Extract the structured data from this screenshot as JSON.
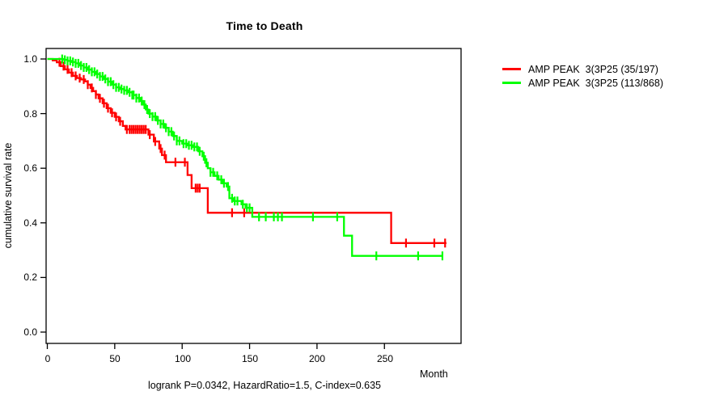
{
  "chart_data": {
    "type": "line",
    "subtype": "kaplan-meier-step",
    "title": "Time to Death",
    "xlabel": "Month",
    "ylabel": "cumulative survival rate",
    "footnote": "logrank P=0.0342, HazardRatio=1.5, C-index=0.635",
    "xlim": [
      0,
      306
    ],
    "ylim": [
      0.0,
      1.04
    ],
    "xticks": [
      0,
      50,
      100,
      150,
      200,
      250
    ],
    "yticks": [
      0.0,
      0.2,
      0.4,
      0.6,
      0.8,
      1.0
    ],
    "xtick_labels": [
      "0",
      "50",
      "100",
      "150",
      "200",
      "250"
    ],
    "ytick_labels": [
      "0.0",
      "0.2",
      "0.4",
      "0.6",
      "0.8",
      "1.0"
    ],
    "grid": false,
    "legend_position": "right-outside",
    "background_color": "#ffffff",
    "axis_color": "#000000",
    "series": [
      {
        "name": "AMP PEAK  3(3P25 (35/197)",
        "color": "#ff0000",
        "end_month": 296,
        "steps": [
          [
            0,
            1.0
          ],
          [
            4,
            0.995
          ],
          [
            7,
            0.988
          ],
          [
            10,
            0.974
          ],
          [
            13,
            0.962
          ],
          [
            16,
            0.95
          ],
          [
            19,
            0.938
          ],
          [
            22,
            0.93
          ],
          [
            25,
            0.925
          ],
          [
            28,
            0.918
          ],
          [
            30,
            0.906
          ],
          [
            32,
            0.894
          ],
          [
            34,
            0.882
          ],
          [
            36,
            0.87
          ],
          [
            38,
            0.856
          ],
          [
            41,
            0.838
          ],
          [
            44,
            0.82
          ],
          [
            47,
            0.803
          ],
          [
            50,
            0.788
          ],
          [
            53,
            0.772
          ],
          [
            56,
            0.755
          ],
          [
            58,
            0.742
          ],
          [
            75,
            0.723
          ],
          [
            79,
            0.698
          ],
          [
            83,
            0.672
          ],
          [
            85,
            0.648
          ],
          [
            88,
            0.622
          ],
          [
            104,
            0.575
          ],
          [
            107,
            0.527
          ],
          [
            119,
            0.437
          ],
          [
            255,
            0.326
          ]
        ],
        "censor_months": [
          9,
          12,
          15,
          18,
          21,
          24,
          27,
          30,
          33,
          36,
          39,
          42,
          45,
          48,
          51,
          54,
          59,
          61,
          62.5,
          64,
          65.5,
          67,
          68.5,
          70,
          71.5,
          73,
          76,
          80,
          84,
          87,
          95,
          102,
          110,
          111.5,
          113,
          137,
          146,
          266,
          287,
          295
        ]
      },
      {
        "name": "AMP PEAK  3(3P25 (113/868)",
        "color": "#00ff00",
        "end_month": 293,
        "steps": [
          [
            0,
            1.0
          ],
          [
            12,
            0.997
          ],
          [
            15,
            0.993
          ],
          [
            18,
            0.989
          ],
          [
            21,
            0.984
          ],
          [
            24,
            0.976
          ],
          [
            27,
            0.969
          ],
          [
            30,
            0.961
          ],
          [
            33,
            0.953
          ],
          [
            36,
            0.945
          ],
          [
            39,
            0.936
          ],
          [
            42,
            0.927
          ],
          [
            45,
            0.917
          ],
          [
            48,
            0.906
          ],
          [
            51,
            0.896
          ],
          [
            54,
            0.89
          ],
          [
            57,
            0.885
          ],
          [
            60,
            0.878
          ],
          [
            63,
            0.868
          ],
          [
            66,
            0.857
          ],
          [
            69,
            0.846
          ],
          [
            71,
            0.833
          ],
          [
            73,
            0.815
          ],
          [
            75,
            0.8
          ],
          [
            78,
            0.789
          ],
          [
            81,
            0.775
          ],
          [
            84,
            0.762
          ],
          [
            87,
            0.748
          ],
          [
            90,
            0.734
          ],
          [
            93,
            0.718
          ],
          [
            96,
            0.7
          ],
          [
            100,
            0.69
          ],
          [
            104,
            0.684
          ],
          [
            108,
            0.678
          ],
          [
            112,
            0.662
          ],
          [
            115,
            0.644
          ],
          [
            117,
            0.62
          ],
          [
            119,
            0.6
          ],
          [
            121,
            0.585
          ],
          [
            124,
            0.572
          ],
          [
            127,
            0.558
          ],
          [
            130,
            0.545
          ],
          [
            133,
            0.533
          ],
          [
            135,
            0.49
          ],
          [
            138,
            0.48
          ],
          [
            144,
            0.468
          ],
          [
            147,
            0.455
          ],
          [
            152,
            0.422
          ],
          [
            220,
            0.353
          ],
          [
            226,
            0.279
          ]
        ],
        "censor_months": [
          11,
          13,
          15,
          17,
          19,
          21,
          23,
          25,
          27,
          29,
          31,
          33,
          35,
          37,
          39,
          41,
          43,
          45,
          47,
          49,
          51,
          53,
          55,
          57,
          59,
          61,
          63,
          64,
          66,
          68,
          70,
          72,
          74,
          76,
          78,
          80,
          82,
          84,
          86,
          88,
          90,
          92,
          94,
          96,
          98,
          101,
          103,
          105,
          107,
          109,
          111,
          113,
          116,
          118,
          121,
          123,
          126,
          129,
          131,
          134,
          137,
          139,
          141,
          145,
          148,
          150,
          157,
          162,
          168,
          171,
          174,
          197,
          215,
          244,
          275,
          293
        ]
      }
    ]
  }
}
